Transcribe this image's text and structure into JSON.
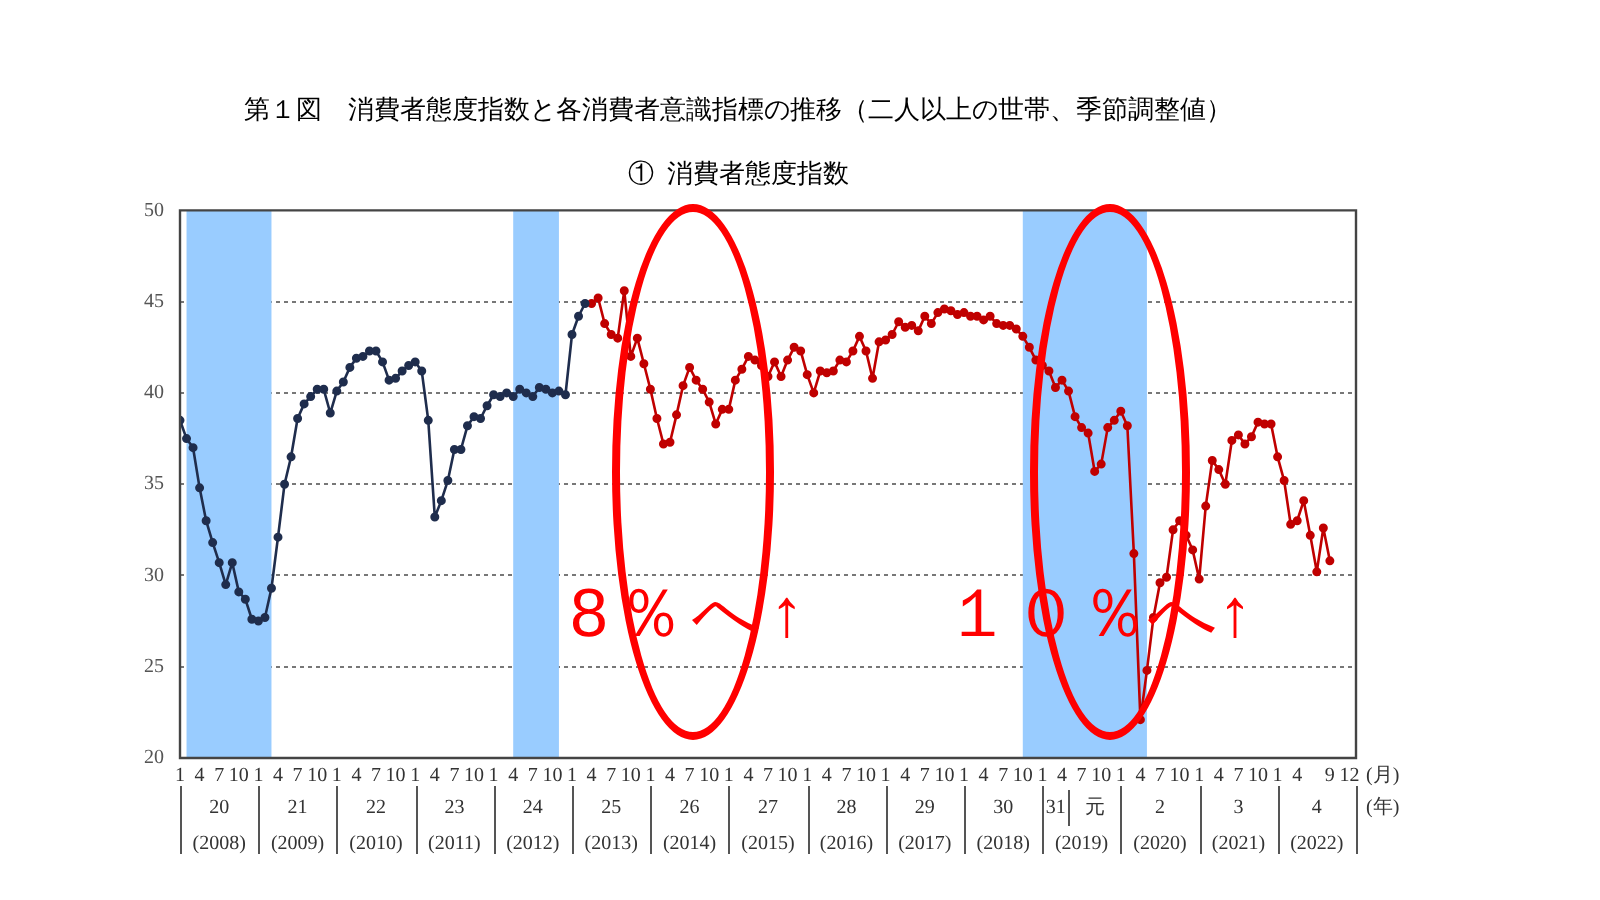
{
  "chart_data": {
    "type": "line",
    "title": "第１図　消費者態度指数と各消費者意識指標の推移（二人以上の世帯、季節調整値）",
    "subtitle": "①  消費者態度指数",
    "series": [
      {
        "color": "#1f2d4d",
        "x": [
          "2008-01",
          "2008-02",
          "2008-03",
          "2008-04",
          "2008-05",
          "2008-06",
          "2008-07",
          "2008-08",
          "2008-09",
          "2008-10",
          "2008-11",
          "2008-12",
          "2009-01",
          "2009-02",
          "2009-03",
          "2009-04",
          "2009-05",
          "2009-06",
          "2009-07",
          "2009-08",
          "2009-09",
          "2009-10",
          "2009-11",
          "2009-12",
          "2010-01",
          "2010-02",
          "2010-03",
          "2010-04",
          "2010-05",
          "2010-06",
          "2010-07",
          "2010-08",
          "2010-09",
          "2010-10",
          "2010-11",
          "2010-12",
          "2011-01",
          "2011-02",
          "2011-03",
          "2011-04",
          "2011-05",
          "2011-06",
          "2011-07",
          "2011-08",
          "2011-09",
          "2011-10",
          "2011-11",
          "2011-12",
          "2012-01",
          "2012-02",
          "2012-03",
          "2012-04",
          "2012-05",
          "2012-06",
          "2012-07",
          "2012-08",
          "2012-09",
          "2012-10",
          "2012-11",
          "2012-12",
          "2013-01",
          "2013-02",
          "2013-03"
        ],
        "values": [
          38.5,
          37.5,
          37.0,
          34.8,
          33.0,
          31.8,
          30.7,
          29.5,
          30.7,
          29.1,
          28.7,
          27.6,
          27.5,
          27.7,
          29.3,
          32.1,
          35.0,
          36.5,
          38.6,
          39.4,
          39.8,
          40.2,
          40.2,
          38.9,
          40.1,
          40.6,
          41.4,
          41.9,
          42.0,
          42.3,
          42.3,
          41.7,
          40.7,
          40.8,
          41.2,
          41.5,
          41.7,
          41.2,
          38.5,
          33.2,
          34.1,
          35.2,
          36.9,
          36.9,
          38.2,
          38.7,
          38.6,
          39.3,
          39.9,
          39.8,
          40.0,
          39.8,
          40.2,
          40.0,
          39.8,
          40.3,
          40.2,
          40.0,
          40.1,
          39.9,
          43.2,
          44.2,
          44.9
        ]
      },
      {
        "color": "#c00000",
        "x": [
          "2013-04",
          "2013-05",
          "2013-06",
          "2013-07",
          "2013-08",
          "2013-09",
          "2013-10",
          "2013-11",
          "2013-12",
          "2014-01",
          "2014-02",
          "2014-03",
          "2014-04",
          "2014-05",
          "2014-06",
          "2014-07",
          "2014-08",
          "2014-09",
          "2014-10",
          "2014-11",
          "2014-12",
          "2015-01",
          "2015-02",
          "2015-03",
          "2015-04",
          "2015-05",
          "2015-06",
          "2015-07",
          "2015-08",
          "2015-09",
          "2015-10",
          "2015-11",
          "2015-12",
          "2016-01",
          "2016-02",
          "2016-03",
          "2016-04",
          "2016-05",
          "2016-06",
          "2016-07",
          "2016-08",
          "2016-09",
          "2016-10",
          "2016-11",
          "2016-12",
          "2017-01",
          "2017-02",
          "2017-03",
          "2017-04",
          "2017-05",
          "2017-06",
          "2017-07",
          "2017-08",
          "2017-09",
          "2017-10",
          "2017-11",
          "2017-12",
          "2018-01",
          "2018-02",
          "2018-03",
          "2018-04",
          "2018-05",
          "2018-06",
          "2018-07",
          "2018-08",
          "2018-09",
          "2018-10",
          "2018-11",
          "2018-12",
          "2019-01",
          "2019-02",
          "2019-03",
          "2019-04",
          "2019-05",
          "2019-06",
          "2019-07",
          "2019-08",
          "2019-09",
          "2019-10",
          "2019-11",
          "2019-12",
          "2020-01",
          "2020-02",
          "2020-03",
          "2020-04",
          "2020-05",
          "2020-06",
          "2020-07",
          "2020-08",
          "2020-09",
          "2020-10",
          "2020-11",
          "2020-12",
          "2021-01",
          "2021-02",
          "2021-03",
          "2021-04",
          "2021-05",
          "2021-06",
          "2021-07",
          "2021-08",
          "2021-09",
          "2021-10",
          "2021-11",
          "2021-12",
          "2022-01",
          "2022-02",
          "2022-03",
          "2022-04",
          "2022-05",
          "2022-06",
          "2022-07",
          "2022-08",
          "2022-09"
        ],
        "values": [
          44.9,
          45.2,
          43.8,
          43.2,
          43.0,
          45.6,
          42.0,
          43.0,
          41.6,
          40.2,
          38.6,
          37.2,
          37.3,
          38.8,
          40.4,
          41.4,
          40.7,
          40.2,
          39.5,
          38.3,
          39.1,
          39.1,
          40.7,
          41.3,
          42.0,
          41.8,
          41.5,
          40.9,
          41.7,
          40.9,
          41.8,
          42.5,
          42.3,
          41.0,
          40.0,
          41.2,
          41.1,
          41.2,
          41.8,
          41.7,
          42.3,
          43.1,
          42.3,
          40.8,
          42.8,
          42.9,
          43.2,
          43.9,
          43.6,
          43.7,
          43.4,
          44.2,
          43.8,
          44.4,
          44.6,
          44.5,
          44.3,
          44.4,
          44.2,
          44.2,
          44.0,
          44.2,
          43.8,
          43.7,
          43.7,
          43.5,
          43.1,
          42.5,
          41.8,
          41.5,
          41.2,
          40.3,
          40.7,
          40.1,
          38.7,
          38.1,
          37.8,
          35.7,
          36.1,
          38.1,
          38.5,
          39.0,
          38.2,
          31.2,
          22.1,
          24.8,
          27.7,
          29.6,
          29.9,
          32.5,
          33.0,
          32.2,
          31.4,
          29.8,
          33.8,
          36.3,
          35.8,
          35.0,
          37.4,
          37.7,
          37.2,
          37.6,
          38.4,
          38.3,
          38.3,
          36.5,
          35.2,
          32.8,
          33.0,
          34.1,
          32.2,
          30.2,
          32.6,
          30.8
        ]
      }
    ],
    "xlim": [
      "2008-01",
      "2023-01"
    ],
    "xticks": [
      {
        "value": "2008-01",
        "label": "1"
      },
      {
        "value": "2008-04",
        "label": "4"
      },
      {
        "value": "2008-07",
        "label": "7"
      },
      {
        "value": "2008-10",
        "label": "10"
      },
      {
        "value": "2009-01",
        "label": "1"
      },
      {
        "value": "2009-04",
        "label": "4"
      },
      {
        "value": "2009-07",
        "label": "7"
      },
      {
        "value": "2009-10",
        "label": "10"
      },
      {
        "value": "2010-01",
        "label": "1"
      },
      {
        "value": "2010-04",
        "label": "4"
      },
      {
        "value": "2010-07",
        "label": "7"
      },
      {
        "value": "2010-10",
        "label": "10"
      },
      {
        "value": "2011-01",
        "label": "1"
      },
      {
        "value": "2011-04",
        "label": "4"
      },
      {
        "value": "2011-07",
        "label": "7"
      },
      {
        "value": "2011-10",
        "label": "10"
      },
      {
        "value": "2012-01",
        "label": "1"
      },
      {
        "value": "2012-04",
        "label": "4"
      },
      {
        "value": "2012-07",
        "label": "7"
      },
      {
        "value": "2012-10",
        "label": "10"
      },
      {
        "value": "2013-01",
        "label": "1"
      },
      {
        "value": "2013-04",
        "label": "4"
      },
      {
        "value": "2013-07",
        "label": "7"
      },
      {
        "value": "2013-10",
        "label": "10"
      },
      {
        "value": "2014-01",
        "label": "1"
      },
      {
        "value": "2014-04",
        "label": "4"
      },
      {
        "value": "2014-07",
        "label": "7"
      },
      {
        "value": "2014-10",
        "label": "10"
      },
      {
        "value": "2015-01",
        "label": "1"
      },
      {
        "value": "2015-04",
        "label": "4"
      },
      {
        "value": "2015-07",
        "label": "7"
      },
      {
        "value": "2015-10",
        "label": "10"
      },
      {
        "value": "2016-01",
        "label": "1"
      },
      {
        "value": "2016-04",
        "label": "4"
      },
      {
        "value": "2016-07",
        "label": "7"
      },
      {
        "value": "2016-10",
        "label": "10"
      },
      {
        "value": "2017-01",
        "label": "1"
      },
      {
        "value": "2017-04",
        "label": "4"
      },
      {
        "value": "2017-07",
        "label": "7"
      },
      {
        "value": "2017-10",
        "label": "10"
      },
      {
        "value": "2018-01",
        "label": "1"
      },
      {
        "value": "2018-04",
        "label": "4"
      },
      {
        "value": "2018-07",
        "label": "7"
      },
      {
        "value": "2018-10",
        "label": "10"
      },
      {
        "value": "2019-01",
        "label": "1"
      },
      {
        "value": "2019-04",
        "label": "4"
      },
      {
        "value": "2019-07",
        "label": "7"
      },
      {
        "value": "2019-10",
        "label": "10"
      },
      {
        "value": "2020-01",
        "label": "1"
      },
      {
        "value": "2020-04",
        "label": "4"
      },
      {
        "value": "2020-07",
        "label": "7"
      },
      {
        "value": "2020-10",
        "label": "10"
      },
      {
        "value": "2021-01",
        "label": "1"
      },
      {
        "value": "2021-04",
        "label": "4"
      },
      {
        "value": "2021-07",
        "label": "7"
      },
      {
        "value": "2021-10",
        "label": "10"
      },
      {
        "value": "2022-01",
        "label": "1"
      },
      {
        "value": "2022-04",
        "label": "4"
      },
      {
        "value": "2022-09",
        "label": "9"
      },
      {
        "value": "2022-12",
        "label": "12"
      }
    ],
    "ylim": [
      20,
      50
    ],
    "yticks": [
      20,
      25,
      30,
      35,
      40,
      45,
      50
    ],
    "grid": "y",
    "marker": "circle",
    "line_style": "solid",
    "bands": [
      {
        "axis": "x",
        "from": "2008-02",
        "to": "2009-03",
        "color": "#99ccff"
      },
      {
        "axis": "x",
        "from": "2012-04",
        "to": "2012-11",
        "color": "#99ccff"
      },
      {
        "axis": "x",
        "from": "2018-10",
        "to": "2020-05",
        "color": "#99ccff"
      }
    ],
    "annotations": [
      "8％へ↑",
      "１０％へ↑",
      "(月)",
      "(年)",
      "20",
      "21",
      "22",
      "23",
      "24",
      "25",
      "26",
      "27",
      "28",
      "29",
      "30",
      "31",
      "元",
      "2",
      "3",
      "4",
      "(2008)",
      "(2009)",
      "(2010)",
      "(2011)",
      "(2012)",
      "(2013)",
      "(2014)",
      "(2015)",
      "(2016)",
      "(2017)",
      "(2018)",
      "(2019)",
      "(2020)",
      "(2021)",
      "(2022)"
    ]
  }
}
